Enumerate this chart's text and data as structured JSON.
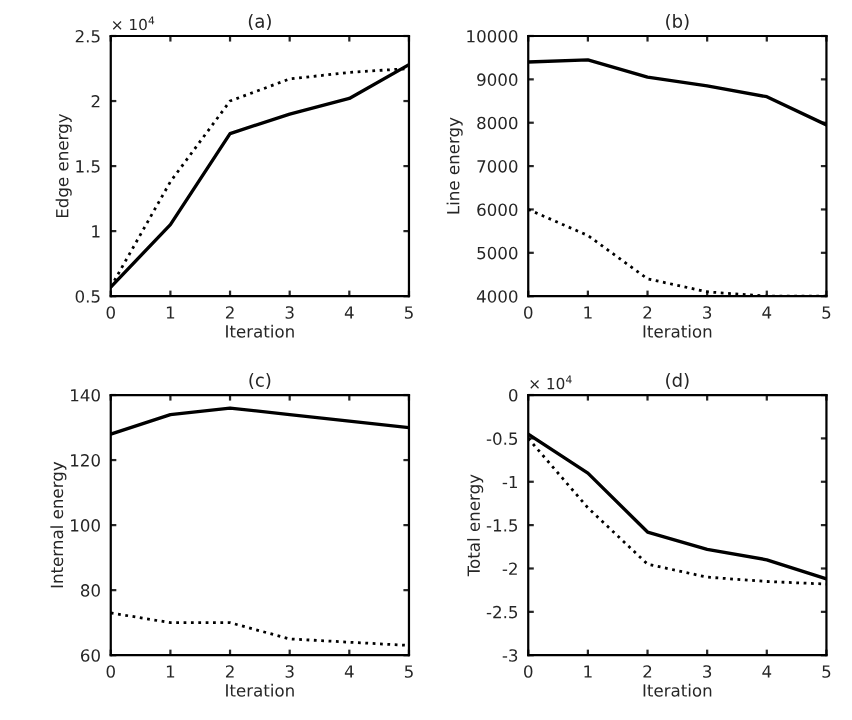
{
  "chart_data": [
    {
      "type": "line",
      "title": "(a)",
      "xlabel": "Iteration",
      "ylabel": "Edge energy",
      "annotations": [
        "× 10$^{4}$"
      ],
      "x": [
        0,
        1,
        2,
        3,
        4,
        5
      ],
      "xlim": [
        0,
        5
      ],
      "xticks": [
        0,
        1,
        2,
        3,
        4,
        5
      ],
      "ylim": [
        0.5,
        2.5
      ],
      "yticks": [
        0.5,
        1,
        1.5,
        2,
        2.5
      ],
      "grid": false,
      "legend": false,
      "marker": "none",
      "series": [
        {
          "color": "#000000",
          "line_style": "solid",
          "values": [
            0.57,
            1.05,
            1.75,
            1.9,
            2.02,
            2.28
          ]
        },
        {
          "color": "#000000",
          "line_style": "dotted",
          "values": [
            0.57,
            1.38,
            2.0,
            2.17,
            2.22,
            2.25
          ]
        }
      ]
    },
    {
      "type": "line",
      "title": "(b)",
      "xlabel": "Iteration",
      "ylabel": "Line energy",
      "x": [
        0,
        1,
        2,
        3,
        4,
        5
      ],
      "xlim": [
        0,
        5
      ],
      "xticks": [
        0,
        1,
        2,
        3,
        4,
        5
      ],
      "ylim": [
        4000,
        10000
      ],
      "yticks": [
        4000,
        5000,
        6000,
        7000,
        8000,
        9000,
        10000
      ],
      "grid": false,
      "legend": false,
      "marker": "none",
      "series": [
        {
          "color": "#000000",
          "line_style": "solid",
          "values": [
            9400,
            9450,
            9050,
            8850,
            8600,
            7950
          ]
        },
        {
          "color": "#000000",
          "line_style": "dotted",
          "values": [
            6000,
            5400,
            4400,
            4100,
            4000,
            4000
          ]
        }
      ]
    },
    {
      "type": "line",
      "title": "(c)",
      "xlabel": "Iteration",
      "ylabel": "Internal energy",
      "x": [
        0,
        1,
        2,
        3,
        4,
        5
      ],
      "xlim": [
        0,
        5
      ],
      "xticks": [
        0,
        1,
        2,
        3,
        4,
        5
      ],
      "ylim": [
        60,
        140
      ],
      "yticks": [
        60,
        80,
        100,
        120,
        140
      ],
      "grid": false,
      "legend": false,
      "marker": "none",
      "series": [
        {
          "color": "#000000",
          "line_style": "solid",
          "values": [
            128,
            134,
            136,
            134,
            132,
            130
          ]
        },
        {
          "color": "#000000",
          "line_style": "dotted",
          "values": [
            73,
            70,
            70,
            65,
            64,
            63
          ]
        }
      ]
    },
    {
      "type": "line",
      "title": "(d)",
      "xlabel": "Iteration",
      "ylabel": "Total energy",
      "annotations": [
        "× 10$^{4}$"
      ],
      "x": [
        0,
        1,
        2,
        3,
        4,
        5
      ],
      "xlim": [
        0,
        5
      ],
      "xticks": [
        0,
        1,
        2,
        3,
        4,
        5
      ],
      "ylim": [
        -3,
        0
      ],
      "yticks": [
        -3,
        -2.5,
        -2,
        -1.5,
        -1,
        -0.5,
        0
      ],
      "grid": false,
      "legend": false,
      "marker": "none",
      "series": [
        {
          "color": "#000000",
          "line_style": "solid",
          "values": [
            -0.45,
            -0.9,
            -1.58,
            -1.78,
            -1.9,
            -2.12
          ]
        },
        {
          "color": "#000000",
          "line_style": "dotted",
          "values": [
            -0.5,
            -1.3,
            -1.95,
            -2.1,
            -2.15,
            -2.18
          ]
        }
      ]
    }
  ]
}
